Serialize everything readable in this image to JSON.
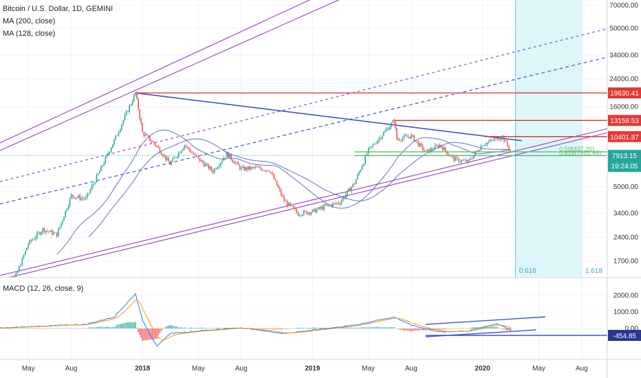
{
  "legend": {
    "title": "Bitcoin / U.S. Dollar, 1D, GEMINI",
    "ma200": "MA (200, close)",
    "ma128": "MA (128, close)",
    "macd": "MACD (12, 26, close, 9)"
  },
  "colors": {
    "candle_up": "#26a69a",
    "candle_down": "#ef5350",
    "channel": "#9c4dcc",
    "trendline": "#3f51d6",
    "resistance": "#e53935",
    "fib": "#66bb6a",
    "ma": "#4a57b5",
    "macd_line": "#2979ff",
    "signal_line": "#ff9800",
    "time_zone": "#b2ebf2"
  },
  "chart_data": [
    {
      "type": "candlestick",
      "title": "Bitcoin / U.S. Dollar, 1D, GEMINI",
      "y_scale": "log",
      "yticks": [
        "70000.00",
        "50000.00",
        "34000.00",
        "24000.00",
        "16000.00",
        "5000.00",
        "3400.00",
        "2400.00",
        "1700.00"
      ],
      "ytick_values": [
        70000,
        50000,
        34000,
        24000,
        16000,
        5000,
        3400,
        2400,
        1700
      ],
      "xticks": [
        "May",
        "Aug",
        "2018",
        "May",
        "Aug",
        "2019",
        "May",
        "Aug",
        "2020",
        "May",
        "Aug"
      ],
      "xtick_dates": [
        "2017-05",
        "2017-08",
        "2018-01",
        "2018-05",
        "2018-08",
        "2019-01",
        "2019-05",
        "2019-08",
        "2020-01",
        "2020-05",
        "2020-08"
      ],
      "price_path": [
        [
          "2017-03",
          1150
        ],
        [
          "2017-04",
          1300
        ],
        [
          "2017-05",
          2200
        ],
        [
          "2017-06",
          2700
        ],
        [
          "2017-07",
          2500
        ],
        [
          "2017-08",
          4400
        ],
        [
          "2017-09",
          4200
        ],
        [
          "2017-10",
          6300
        ],
        [
          "2017-11",
          9800
        ],
        [
          "2017-12-17",
          19630
        ],
        [
          "2018-01",
          11000
        ],
        [
          "2018-02",
          9000
        ],
        [
          "2018-03",
          7000
        ],
        [
          "2018-04",
          9200
        ],
        [
          "2018-05",
          7500
        ],
        [
          "2018-06",
          6300
        ],
        [
          "2018-07",
          8100
        ],
        [
          "2018-08",
          6500
        ],
        [
          "2018-09",
          6600
        ],
        [
          "2018-10",
          6400
        ],
        [
          "2018-11",
          4100
        ],
        [
          "2018-12",
          3400
        ],
        [
          "2019-01",
          3500
        ],
        [
          "2019-02",
          3800
        ],
        [
          "2019-03",
          4000
        ],
        [
          "2019-04",
          5300
        ],
        [
          "2019-05",
          8500
        ],
        [
          "2019-06-26",
          13158
        ],
        [
          "2019-07",
          10000
        ],
        [
          "2019-08",
          10500
        ],
        [
          "2019-09",
          8300
        ],
        [
          "2019-10",
          9200
        ],
        [
          "2019-11",
          7500
        ],
        [
          "2019-12",
          7200
        ],
        [
          "2020-01",
          9300
        ],
        [
          "2020-02-13",
          10401
        ],
        [
          "2020-03-05",
          7913
        ]
      ],
      "horizontal_levels": [
        {
          "label": "19630.41",
          "value": 19630.41
        },
        {
          "label": "13158.53",
          "value": 13158.53
        },
        {
          "label": "10401.87",
          "value": 10401.87
        }
      ],
      "fib_levels": [
        {
          "label": "0.5(8337.25)",
          "value": 8337.25
        },
        {
          "label": "0.618(7891.46)",
          "value": 7891.46
        }
      ],
      "last_price": {
        "label": "7913.15",
        "value": 7913.15,
        "countdown": "19:24:05"
      },
      "time_zones": [
        {
          "label": "0.618",
          "date": "2020-03-12"
        },
        {
          "label": "1.618",
          "date": "2020-08-01"
        }
      ],
      "moving_averages": [
        "MA (200, close)",
        "MA (128, close)"
      ]
    },
    {
      "type": "line",
      "title": "MACD (12, 26, close, 9)",
      "yticks": [
        "2000.00",
        "1000.00",
        "0.00"
      ],
      "ytick_values": [
        2000,
        1000,
        0
      ],
      "current_value": {
        "label": "-454.85",
        "value": -454.85
      },
      "macd_path": [
        [
          "2017-03",
          20
        ],
        [
          "2017-06",
          150
        ],
        [
          "2017-09",
          250
        ],
        [
          "2017-11",
          700
        ],
        [
          "2017-12-17",
          2100
        ],
        [
          "2018-01",
          500
        ],
        [
          "2018-02",
          -1100
        ],
        [
          "2018-03",
          -300
        ],
        [
          "2018-05",
          -150
        ],
        [
          "2018-08",
          50
        ],
        [
          "2018-11",
          -300
        ],
        [
          "2019-01",
          -100
        ],
        [
          "2019-04",
          200
        ],
        [
          "2019-06-26",
          700
        ],
        [
          "2019-08",
          200
        ],
        [
          "2019-10",
          -200
        ],
        [
          "2019-12",
          -150
        ],
        [
          "2020-02",
          300
        ],
        [
          "2020-03-05",
          -100
        ]
      ]
    }
  ]
}
